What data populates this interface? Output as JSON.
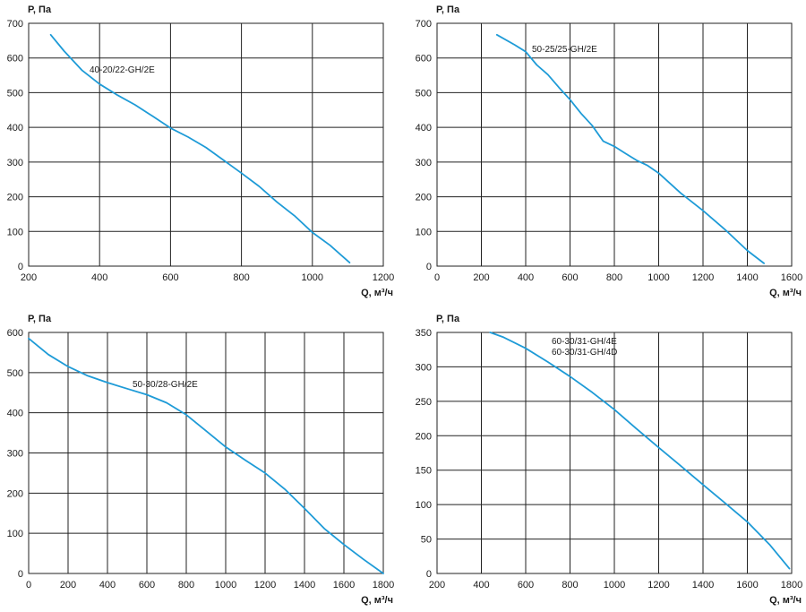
{
  "colors": {
    "curve": "#1e9bd7",
    "grid": "#222222",
    "background": "#ffffff"
  },
  "chart_data": [
    {
      "type": "line",
      "name": "40-20/22-GH/2E",
      "ylabel": "P, Па",
      "xlabel": "Q, м³/ч",
      "xlim": [
        200,
        1200
      ],
      "ylim": [
        0,
        700
      ],
      "xticks": [
        200,
        400,
        600,
        800,
        1000,
        1200
      ],
      "yticks": [
        0,
        100,
        200,
        300,
        400,
        500,
        600,
        700
      ],
      "series": [
        {
          "name": "40-20/22-GH/2E",
          "x": [
            262,
            300,
            350,
            400,
            450,
            500,
            550,
            600,
            650,
            700,
            750,
            800,
            850,
            900,
            950,
            1000,
            1050,
            1105
          ],
          "y": [
            667,
            620,
            565,
            525,
            493,
            465,
            432,
            398,
            372,
            342,
            305,
            268,
            230,
            185,
            145,
            97,
            60,
            10
          ]
        }
      ]
    },
    {
      "type": "line",
      "name": "50-25/25-GH/2E",
      "ylabel": "P, Па",
      "xlabel": "Q, м³/ч",
      "xlim": [
        0,
        1600
      ],
      "ylim": [
        0,
        700
      ],
      "xticks": [
        0,
        200,
        400,
        600,
        800,
        1000,
        1200,
        1400,
        1600
      ],
      "yticks": [
        0,
        100,
        200,
        300,
        400,
        500,
        600,
        700
      ],
      "series": [
        {
          "name": "50-25/25-GH/2E",
          "x": [
            270,
            350,
            400,
            450,
            500,
            550,
            600,
            650,
            700,
            750,
            800,
            850,
            900,
            950,
            1000,
            1100,
            1200,
            1300,
            1400,
            1475
          ],
          "y": [
            667,
            638,
            618,
            580,
            552,
            515,
            480,
            440,
            405,
            360,
            345,
            325,
            305,
            290,
            268,
            210,
            160,
            105,
            45,
            8
          ]
        }
      ]
    },
    {
      "type": "line",
      "name": "50-30/28-GH/2E",
      "ylabel": "P, Па",
      "xlabel": "Q, м³/ч",
      "xlim": [
        0,
        1800
      ],
      "ylim": [
        0,
        600
      ],
      "xticks": [
        0,
        200,
        400,
        600,
        800,
        1000,
        1200,
        1400,
        1600,
        1800
      ],
      "yticks": [
        0,
        100,
        200,
        300,
        400,
        500,
        600
      ],
      "series": [
        {
          "name": "50-30/28-GH/2E",
          "x": [
            0,
            100,
            200,
            300,
            400,
            500,
            600,
            700,
            800,
            900,
            1000,
            1100,
            1200,
            1300,
            1400,
            1500,
            1600,
            1700,
            1800
          ],
          "y": [
            585,
            545,
            515,
            492,
            475,
            460,
            445,
            425,
            395,
            355,
            315,
            282,
            250,
            210,
            162,
            112,
            72,
            35,
            0
          ]
        }
      ]
    },
    {
      "type": "line",
      "name": "60-30/31-GH/4E / 60-30/31-GH/4D",
      "ylabel": "P, Па",
      "xlabel": "Q, м³/ч",
      "xlim": [
        200,
        1800
      ],
      "ylim": [
        0,
        350
      ],
      "xticks": [
        200,
        400,
        600,
        800,
        1000,
        1200,
        1400,
        1600,
        1800
      ],
      "yticks": [
        0,
        50,
        100,
        150,
        200,
        250,
        300,
        350
      ],
      "series": [
        {
          "name": "60-30/31-GH/4E",
          "label2": "60-30/31-GH/4D",
          "x": [
            440,
            500,
            600,
            700,
            800,
            900,
            1000,
            1100,
            1200,
            1300,
            1400,
            1500,
            1600,
            1700,
            1790
          ],
          "y": [
            350,
            343,
            327,
            307,
            286,
            263,
            238,
            210,
            183,
            156,
            129,
            102,
            75,
            42,
            7
          ]
        }
      ]
    }
  ]
}
